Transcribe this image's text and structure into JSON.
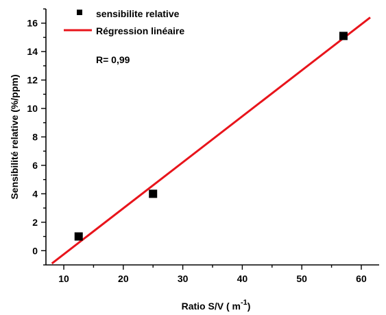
{
  "chart_data": {
    "type": "scatter",
    "xlabel": "Ratio S/V ( m",
    "xlabel_sup": "-1",
    "xlabel_end": ")",
    "ylabel": "Sensibilité relative (%/ppm)",
    "xlim": [
      7,
      63
    ],
    "ylim": [
      -1,
      17
    ],
    "x_ticks": [
      10,
      20,
      30,
      40,
      50,
      60
    ],
    "y_ticks": [
      0,
      2,
      4,
      6,
      8,
      10,
      12,
      14,
      16
    ],
    "grid": false,
    "legend_position": "top-left",
    "series": [
      {
        "name": "sensibilite relative",
        "kind": "points",
        "marker": "square",
        "color": "#000000",
        "x": [
          12.5,
          25,
          57
        ],
        "y": [
          1.0,
          4.0,
          15.1
        ]
      },
      {
        "name": "Régression linéaire",
        "kind": "line",
        "color": "#e8141b",
        "x": [
          8,
          61.5
        ],
        "y": [
          -0.9,
          16.4
        ]
      }
    ],
    "annotations": [
      "R= 0,99"
    ]
  }
}
